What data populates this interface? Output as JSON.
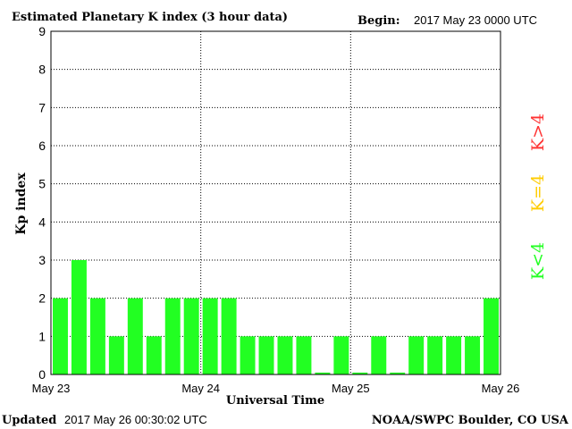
{
  "header": {
    "title": "Estimated Planetary K index (3 hour data)",
    "begin_label": "Begin:",
    "begin_value": "2017 May 23 0000 UTC"
  },
  "footer": {
    "updated_label": "Updated",
    "updated_value": "2017 May 26 00:30:02 UTC",
    "source": "NOAA/SWPC Boulder, CO USA"
  },
  "legend": {
    "above": "K>4",
    "equal": "K=4",
    "below": "K<4"
  },
  "colors": {
    "below": "#22ff22",
    "equal": "#ffcc00",
    "above": "#ff3333",
    "grid": "#000000",
    "bar_gap": "#ffffff"
  },
  "chart_data": {
    "type": "bar",
    "ylabel": "Kp index",
    "xlabel": "Universal Time",
    "ylim": [
      0,
      9
    ],
    "yticks": [
      "0",
      "1",
      "2",
      "3",
      "4",
      "5",
      "6",
      "7",
      "8",
      "9"
    ],
    "xtick_labels": [
      "May 23",
      "May 24",
      "May 25",
      "May 26"
    ],
    "grid": true,
    "legend_position": "right",
    "values": [
      2,
      3,
      2,
      1,
      2,
      1,
      2,
      2,
      2,
      2,
      1,
      1,
      1,
      1,
      0.05,
      1,
      0.05,
      1,
      0.05,
      1,
      1,
      1,
      1,
      2
    ]
  }
}
